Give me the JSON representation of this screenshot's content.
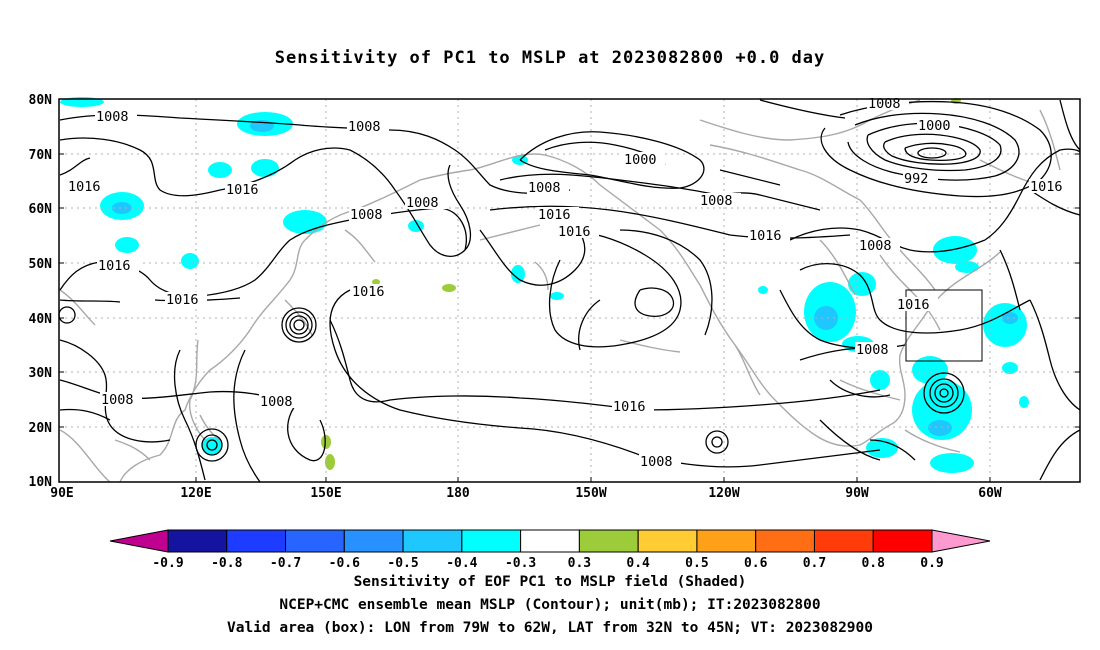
{
  "title": "Sensitivity of PC1 to MSLP at 2023082800 +0.0 day",
  "lat_labels": [
    "80N",
    "70N",
    "60N",
    "50N",
    "40N",
    "30N",
    "20N",
    "10N"
  ],
  "lon_labels": [
    "90E",
    "120E",
    "150E",
    "180",
    "150W",
    "120W",
    "90W",
    "60W"
  ],
  "contour_labels": [
    "1008",
    "1008",
    "1008",
    "1000",
    "1008",
    "1016",
    "1016",
    "1016",
    "1016",
    "1008",
    "1016",
    "1008",
    "1000",
    "992",
    "1016",
    "1008",
    "1016",
    "1016",
    "1016",
    "1008",
    "1008",
    "1008",
    "1016",
    "1008",
    "1008",
    "1016"
  ],
  "colorbar": {
    "labels": [
      "-0.9",
      "-0.8",
      "-0.7",
      "-0.6",
      "-0.5",
      "-0.4",
      "-0.3",
      "0.3",
      "0.4",
      "0.5",
      "0.6",
      "0.7",
      "0.8",
      "0.9"
    ],
    "colors": [
      "#c0008f",
      "#1414a0",
      "#1e3cff",
      "#2864ff",
      "#2891ff",
      "#1ec8ff",
      "#00ffff",
      "#ffffff",
      "#9ccc3a",
      "#ffcc33",
      "#ffa019",
      "#ff6e14",
      "#ff3c0a",
      "#ff0000",
      "#ff9ad1"
    ]
  },
  "captions": [
    "Sensitivity of EOF PC1 to MSLP field (Shaded)",
    "NCEP+CMC ensemble mean MSLP (Contour); unit(mb); IT:2023082800",
    "Valid area (box): LON from 79W to 62W, LAT from 32N to 45N; VT: 2023082900"
  ],
  "colors": {
    "contour": "#000000",
    "coastline": "#a8a8a8",
    "grid": "#b0b0b0",
    "negative_shade": "#00ffff",
    "negative_core": "#1ec8ff",
    "positive_shade": "#9ccc3a"
  }
}
